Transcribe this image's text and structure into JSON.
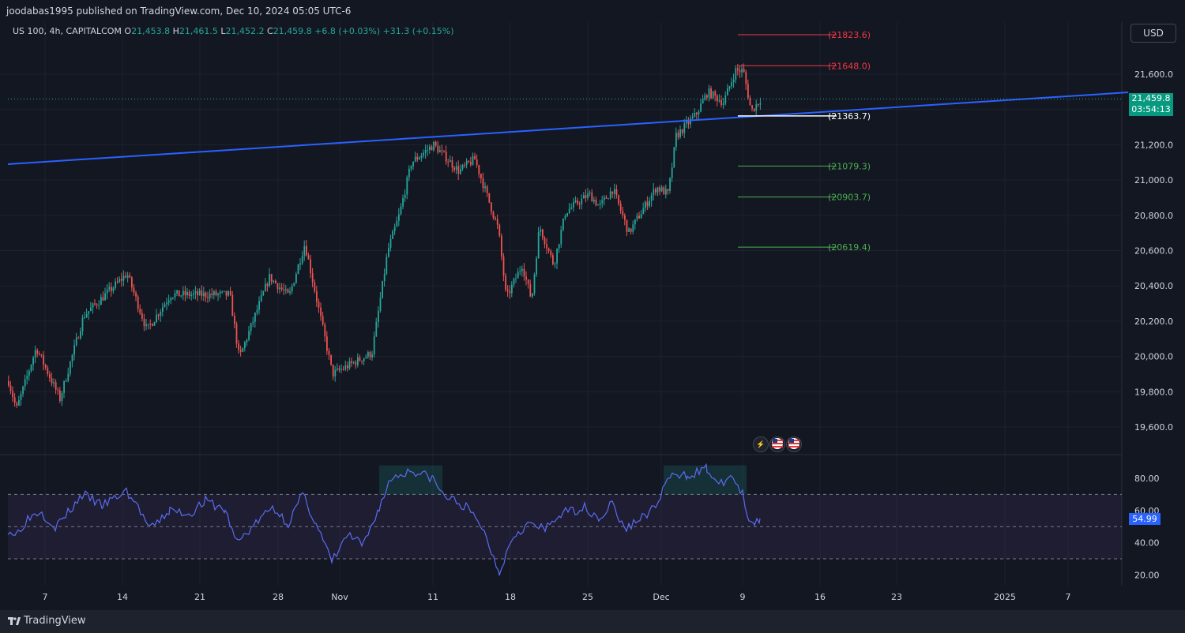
{
  "header": {
    "published": "joodabas1995 published on TradingView.com, Dec 10, 2024 05:05 UTC-6"
  },
  "legend": {
    "symbol": "US 100, 4h, CAPITALCOM",
    "o_label": "O",
    "o": "21,453.8",
    "h_label": "H",
    "h": "21,461.5",
    "l_label": "L",
    "l": "21,452.2",
    "c_label": "C",
    "c": "21,459.8",
    "change": "+6.8 (+0.03%)",
    "change2": "+31.3 (+0.15%)"
  },
  "currency_button": "USD",
  "last_price": {
    "price": "21,459.8",
    "countdown": "03:54:13"
  },
  "rsi_value": "54.99",
  "price_axis": [
    "21,600.0",
    "21,400.0",
    "21,200.0",
    "21,000.0",
    "20,800.0",
    "20,600.0",
    "20,400.0",
    "20,200.0",
    "20,000.0",
    "19,800.0",
    "19,600.0"
  ],
  "rsi_axis": [
    "80.00",
    "60.00",
    "40.00",
    "20.00"
  ],
  "time_axis": [
    "7",
    "14",
    "21",
    "28",
    "Nov",
    "11",
    "18",
    "25",
    "Dec",
    "9",
    "16",
    "23",
    "2025",
    "7"
  ],
  "levels": [
    {
      "label": "(21823.6)",
      "price": 21823.6,
      "color": "#f23645"
    },
    {
      "label": "(21648.0)",
      "price": 21648.0,
      "color": "#f23645"
    },
    {
      "label": "(21363.7)",
      "price": 21363.7,
      "color": "#ffffff"
    },
    {
      "label": "(21079.3)",
      "price": 21079.3,
      "color": "#4caf50"
    },
    {
      "label": "(20903.7)",
      "price": 20903.7,
      "color": "#4caf50"
    },
    {
      "label": "(20619.4)",
      "price": 20619.4,
      "color": "#4caf50"
    }
  ],
  "colors": {
    "up": "#26a69a",
    "down": "#ef5350",
    "trend": "#2962ff",
    "rsi": "#5b6cf0"
  },
  "footer": {
    "brand": "TradingView"
  },
  "events": [
    "lightning-icon",
    "us-flag-icon",
    "us-flag-icon"
  ]
}
